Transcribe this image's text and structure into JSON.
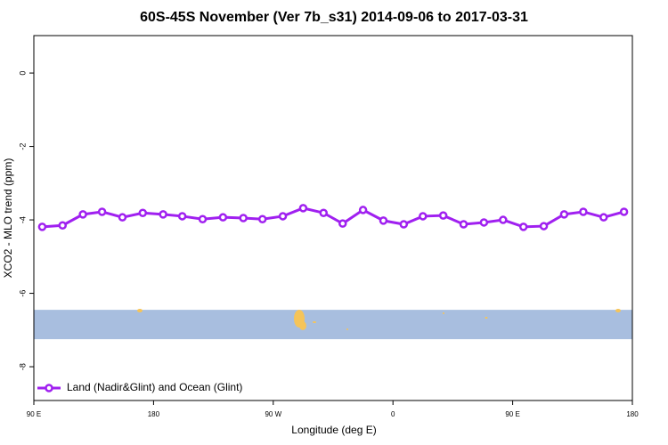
{
  "chart_data": {
    "type": "line",
    "title": "60S-45S November (Ver 7b_s31)   2014-09-06 to 2017-03-31",
    "x_label": "Longitude (deg E)",
    "y_label": "XCO2 - MLO trend (ppm)",
    "xlim": [
      0,
      5
    ],
    "xticks": [
      {
        "value": 0,
        "label": "90 E"
      },
      {
        "value": 1,
        "label": "180"
      },
      {
        "value": 2,
        "label": "90 W"
      },
      {
        "value": 3,
        "label": "0"
      },
      {
        "value": 4,
        "label": "90 E"
      },
      {
        "value": 5,
        "label": "180"
      }
    ],
    "ylim": [
      -8.92,
      1.02
    ],
    "yticks": [
      0,
      -2,
      -4,
      -6,
      -8
    ],
    "legend": "bottom-left",
    "band": {
      "ymin": -7.25,
      "ymax": -6.45,
      "color": "#a8bedf"
    },
    "series": [
      {
        "name": "Land (Nadir&Glint) and Ocean (Glint)",
        "color": "#a020f0",
        "x": [
          0.07,
          0.24,
          0.41,
          0.57,
          0.74,
          0.91,
          1.08,
          1.24,
          1.41,
          1.58,
          1.75,
          1.91,
          2.08,
          2.25,
          2.42,
          2.58,
          2.75,
          2.92,
          3.09,
          3.25,
          3.42,
          3.59,
          3.76,
          3.92,
          4.09,
          4.26,
          4.43,
          4.59,
          4.76,
          4.93
        ],
        "values": [
          -4.19,
          -4.15,
          -3.85,
          -3.78,
          -3.93,
          -3.81,
          -3.85,
          -3.9,
          -3.98,
          -3.93,
          -3.95,
          -3.98,
          -3.9,
          -3.68,
          -3.81,
          -4.1,
          -3.73,
          -4.02,
          -4.12,
          -3.9,
          -3.88,
          -4.12,
          -4.07,
          -4.0,
          -4.19,
          -4.17,
          -3.85,
          -3.78,
          -3.93,
          -3.78
        ]
      }
    ]
  }
}
